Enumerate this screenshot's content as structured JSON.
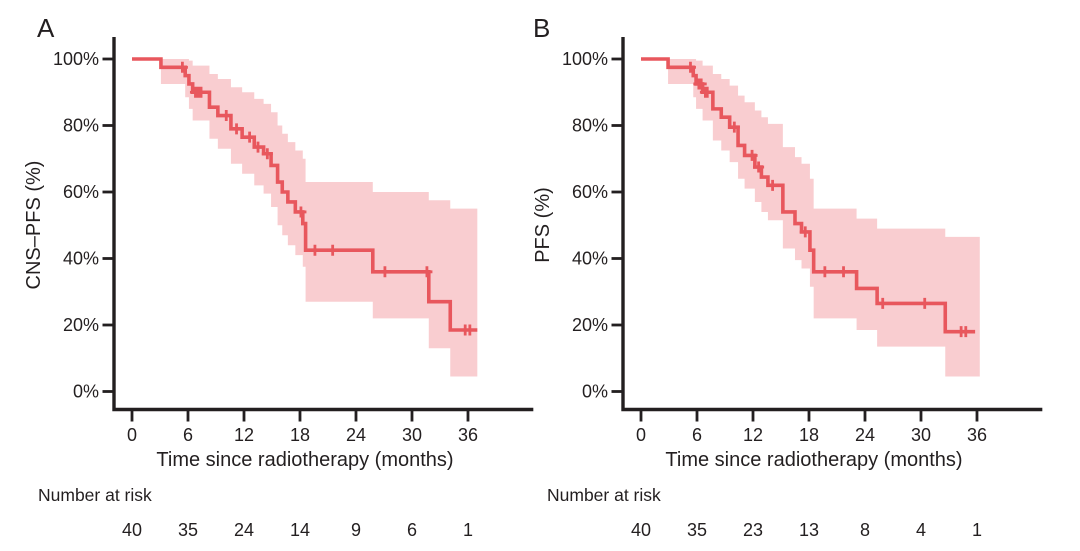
{
  "figure": {
    "background": "#ffffff",
    "description": "Kaplan-Meier survival curves with 95% confidence bands"
  },
  "colors": {
    "curve": "#e8575d",
    "band": "#f9cdd0",
    "axis": "#231f20",
    "text": "#231f20"
  },
  "chart_data": [
    {
      "type": "line",
      "subtype": "kaplan-meier-step",
      "panel_label": "A",
      "ylabel": "CNS–PFS (%)",
      "xlabel": "Time since radiotherapy (months)",
      "xticks": [
        0,
        6,
        12,
        18,
        24,
        30,
        36
      ],
      "ytick_values": [
        0,
        20,
        40,
        60,
        80,
        100
      ],
      "ytick_labels": [
        "0%",
        "20%",
        "40%",
        "60%",
        "80%",
        "100%"
      ],
      "xlim": [
        0,
        43
      ],
      "ylim": [
        0,
        100
      ],
      "grid": false,
      "legend": "none",
      "risk_label": "Number at risk",
      "number_at_risk": [
        40,
        35,
        24,
        14,
        9,
        6,
        1
      ],
      "survival_steps": [
        [
          0,
          100
        ],
        [
          3.1,
          97.5
        ],
        [
          5.7,
          95
        ],
        [
          6.1,
          92.5
        ],
        [
          6.5,
          90
        ],
        [
          8.3,
          85.5
        ],
        [
          9.2,
          83
        ],
        [
          10.6,
          79
        ],
        [
          11.8,
          76.5
        ],
        [
          13.1,
          73.5
        ],
        [
          14.1,
          71.5
        ],
        [
          14.9,
          68
        ],
        [
          15.6,
          63
        ],
        [
          16.1,
          60
        ],
        [
          16.7,
          57
        ],
        [
          17.5,
          54
        ],
        [
          18.3,
          50.5
        ],
        [
          18.6,
          42.5
        ],
        [
          25.8,
          36
        ],
        [
          31.8,
          27
        ],
        [
          34.1,
          18.5
        ]
      ],
      "end_time": 37,
      "censor_marks": [
        [
          5.4,
          97.5
        ],
        [
          6.8,
          90
        ],
        [
          7.1,
          90
        ],
        [
          7.4,
          90
        ],
        [
          10.1,
          83
        ],
        [
          11.2,
          79
        ],
        [
          12.6,
          76.5
        ],
        [
          13.5,
          73.5
        ],
        [
          14.5,
          71.5
        ],
        [
          18.1,
          54
        ],
        [
          19.6,
          42.5
        ],
        [
          21.5,
          42.5
        ],
        [
          27.1,
          36
        ],
        [
          31.6,
          36
        ],
        [
          35.7,
          18.5
        ],
        [
          36.2,
          18.5
        ]
      ],
      "confidence_band": [
        [
          3.1,
          100,
          92.5
        ],
        [
          5.7,
          100,
          88.5
        ],
        [
          6.1,
          99.5,
          85
        ],
        [
          6.5,
          98,
          81.5
        ],
        [
          8.3,
          95.5,
          76
        ],
        [
          9.2,
          94,
          73
        ],
        [
          10.6,
          91.5,
          68.5
        ],
        [
          11.8,
          90,
          65.5
        ],
        [
          13.1,
          88,
          62
        ],
        [
          14.1,
          86.5,
          59.5
        ],
        [
          14.9,
          84,
          55.5
        ],
        [
          15.6,
          80,
          50
        ],
        [
          16.1,
          77.5,
          47
        ],
        [
          16.7,
          75,
          44
        ],
        [
          17.5,
          72.5,
          41
        ],
        [
          18.3,
          70,
          37.5
        ],
        [
          18.6,
          63,
          27
        ],
        [
          25.8,
          60,
          22
        ],
        [
          31.8,
          57.5,
          13
        ],
        [
          34.1,
          55,
          4.5
        ]
      ],
      "band_end": 37
    },
    {
      "type": "line",
      "subtype": "kaplan-meier-step",
      "panel_label": "B",
      "ylabel": "PFS (%)",
      "xlabel": "Time since radiotherapy (months)",
      "xticks": [
        0,
        6,
        12,
        18,
        24,
        30,
        36
      ],
      "ytick_values": [
        0,
        20,
        40,
        60,
        80,
        100
      ],
      "ytick_labels": [
        "0%",
        "20%",
        "40%",
        "60%",
        "80%",
        "100%"
      ],
      "xlim": [
        0,
        43
      ],
      "ylim": [
        0,
        100
      ],
      "grid": false,
      "legend": "none",
      "risk_label": "Number at risk",
      "number_at_risk": [
        40,
        35,
        23,
        13,
        8,
        4,
        1
      ],
      "survival_steps": [
        [
          0,
          100
        ],
        [
          2.9,
          97.5
        ],
        [
          5.6,
          95
        ],
        [
          5.9,
          92.5
        ],
        [
          6.6,
          90
        ],
        [
          7.7,
          85
        ],
        [
          8.6,
          82.5
        ],
        [
          9.5,
          79.5
        ],
        [
          10.4,
          74
        ],
        [
          11.1,
          71
        ],
        [
          12.2,
          67.5
        ],
        [
          12.9,
          64.5
        ],
        [
          13.6,
          62
        ],
        [
          15.2,
          54
        ],
        [
          16.5,
          50.5
        ],
        [
          17.2,
          48
        ],
        [
          18.1,
          42.5
        ],
        [
          18.5,
          36
        ],
        [
          23.1,
          31
        ],
        [
          25.3,
          26.5
        ],
        [
          32.6,
          18
        ]
      ],
      "end_time": 35.8,
      "censor_marks": [
        [
          5.3,
          97.5
        ],
        [
          6.2,
          92.5
        ],
        [
          6.45,
          92.5
        ],
        [
          6.9,
          90
        ],
        [
          7.1,
          90
        ],
        [
          10.0,
          79.5
        ],
        [
          11.9,
          71
        ],
        [
          12.6,
          67.5
        ],
        [
          14.1,
          62
        ],
        [
          17.6,
          48
        ],
        [
          19.7,
          36
        ],
        [
          21.7,
          36
        ],
        [
          25.9,
          26.5
        ],
        [
          30.4,
          26.5
        ],
        [
          34.3,
          18
        ],
        [
          34.8,
          18
        ]
      ],
      "confidence_band": [
        [
          2.9,
          100,
          92.5
        ],
        [
          5.6,
          100,
          88.5
        ],
        [
          5.9,
          99.5,
          85
        ],
        [
          6.6,
          98,
          81.5
        ],
        [
          7.7,
          95.5,
          75.5
        ],
        [
          8.6,
          94,
          72.5
        ],
        [
          9.5,
          92,
          69
        ],
        [
          10.4,
          89,
          64
        ],
        [
          11.1,
          87,
          61
        ],
        [
          12.2,
          84.5,
          57
        ],
        [
          12.9,
          82.5,
          54
        ],
        [
          13.6,
          80.5,
          51.5
        ],
        [
          15.2,
          73.5,
          43
        ],
        [
          16.5,
          70.5,
          39.5
        ],
        [
          17.2,
          68.5,
          37
        ],
        [
          18.1,
          64,
          31.5
        ],
        [
          18.5,
          55,
          22
        ],
        [
          23.1,
          52,
          18.5
        ],
        [
          25.3,
          49,
          13.5
        ],
        [
          32.6,
          46.5,
          4.5
        ]
      ],
      "band_end": 36.3
    }
  ]
}
